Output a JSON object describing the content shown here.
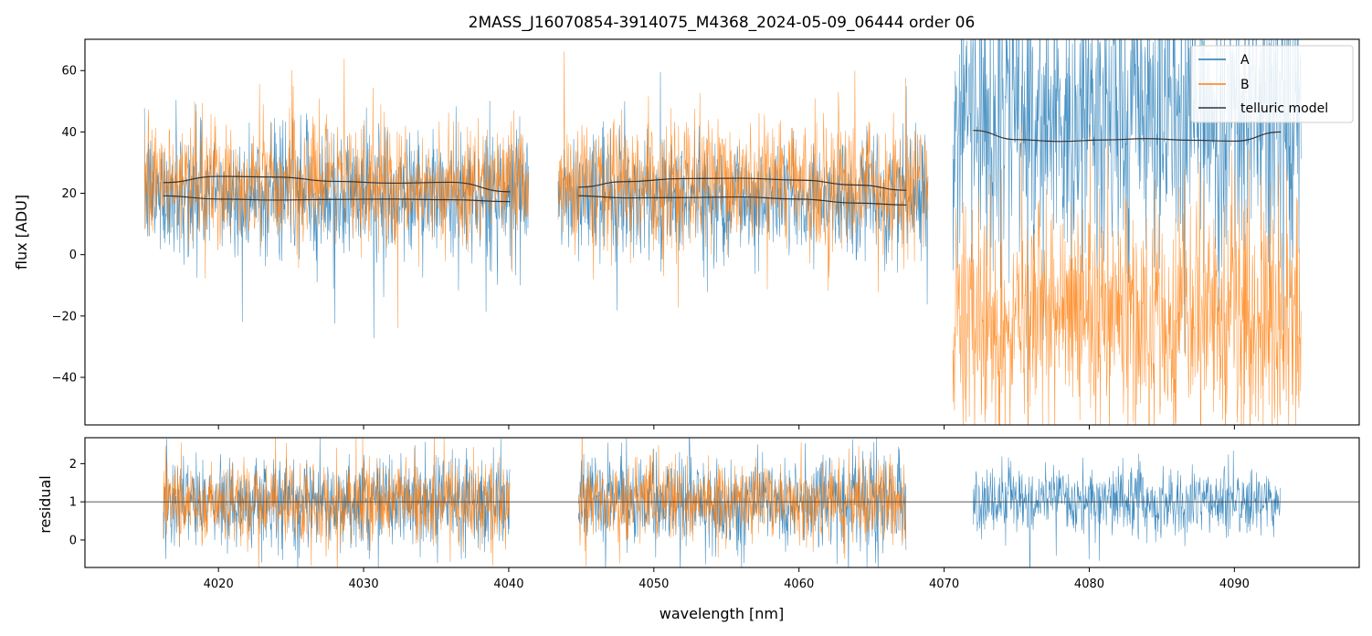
{
  "chart_data": [
    {
      "panel": "top",
      "type": "line",
      "title": "2MASS_J16070854-3914075_M4368_2024-05-09_06444  order 06",
      "xlabel": "",
      "ylabel": "flux [ADU]",
      "xlim": [
        4010.8,
        4098.6
      ],
      "ylim": [
        -55.5,
        70.2
      ],
      "x_ticks": [
        4020,
        4030,
        4040,
        4050,
        4060,
        4070,
        4080,
        4090
      ],
      "y_ticks": [
        -40,
        -20,
        0,
        20,
        40,
        60
      ],
      "y_tick_labels": [
        "−40",
        "−20",
        "0",
        "20",
        "40",
        "60"
      ],
      "x_ticklabels_visible": false,
      "legend": {
        "position": "top-right",
        "entries": [
          {
            "label": "A",
            "color": "#1f77b4"
          },
          {
            "label": "B",
            "color": "#ff7f0e"
          },
          {
            "label": "telluric model",
            "color": "#333333"
          }
        ]
      },
      "series": [
        {
          "name": "A",
          "color": "#1f77b4",
          "kind": "noisy-spectrum",
          "segments": [
            {
              "x": [
                4014.9,
                4041.4
              ],
              "mean": 20,
              "std": 10
            },
            {
              "x": [
                4043.4,
                4068.9
              ],
              "mean": 19,
              "std": 10
            },
            {
              "x": [
                4070.6,
                4094.6
              ],
              "mean": 45,
              "std": 24
            }
          ]
        },
        {
          "name": "B",
          "color": "#ff7f0e",
          "kind": "noisy-spectrum",
          "segments": [
            {
              "x": [
                4014.9,
                4041.4
              ],
              "mean": 23,
              "std": 10
            },
            {
              "x": [
                4043.4,
                4068.9
              ],
              "mean": 23,
              "std": 10
            },
            {
              "x": [
                4070.6,
                4094.6
              ],
              "mean": -22,
              "std": 19
            }
          ]
        },
        {
          "name": "telluric model",
          "color": "#333333",
          "kind": "smooth",
          "curves": [
            {
              "x": [
                4016.2,
                4020,
                4024,
                4028,
                4032,
                4036,
                4040.1
              ],
              "y": [
                23.5,
                25.5,
                25.3,
                23.9,
                23.3,
                23.6,
                20.5
              ]
            },
            {
              "x": [
                4016.2,
                4020,
                4024,
                4028,
                4032,
                4036,
                4040.1
              ],
              "y": [
                19.2,
                18.1,
                17.8,
                18.0,
                18.1,
                17.9,
                17.3
              ]
            },
            {
              "x": [
                4044.8,
                4048,
                4052,
                4056,
                4060,
                4064,
                4067.4
              ],
              "y": [
                22.0,
                23.8,
                24.8,
                24.9,
                24.3,
                22.7,
                21.0
              ]
            },
            {
              "x": [
                4044.8,
                4048,
                4052,
                4056,
                4060,
                4064,
                4067.4
              ],
              "y": [
                19.2,
                18.5,
                18.6,
                18.8,
                18.1,
                16.8,
                16.2
              ]
            },
            {
              "x": [
                4072.0,
                4075,
                4078,
                4081,
                4084,
                4087,
                4090,
                4093.2
              ],
              "y": [
                40.5,
                37.5,
                36.9,
                37.4,
                37.8,
                37.3,
                37.0,
                40.0
              ]
            }
          ]
        }
      ]
    },
    {
      "panel": "bottom",
      "type": "line",
      "xlabel": "wavelength [nm]",
      "ylabel": "residual",
      "xlim": [
        4010.8,
        4098.6
      ],
      "ylim": [
        -0.72,
        2.68
      ],
      "x_ticks": [
        4020,
        4030,
        4040,
        4050,
        4060,
        4070,
        4080,
        4090
      ],
      "y_ticks": [
        0,
        1,
        2
      ],
      "reference_line": 1,
      "series": [
        {
          "name": "A",
          "color": "#1f77b4",
          "kind": "noisy-residual",
          "segments": [
            {
              "x": [
                4016.2,
                4040.1
              ],
              "mean": 1,
              "std": 0.6
            },
            {
              "x": [
                4044.8,
                4067.4
              ],
              "mean": 1,
              "std": 0.6
            },
            {
              "x": [
                4072.0,
                4093.2
              ],
              "mean": 1,
              "std": 0.45
            }
          ]
        },
        {
          "name": "B",
          "color": "#ff7f0e",
          "kind": "noisy-residual",
          "segments": [
            {
              "x": [
                4016.2,
                4040.1
              ],
              "mean": 1,
              "std": 0.55
            },
            {
              "x": [
                4044.8,
                4067.4
              ],
              "mean": 1,
              "std": 0.5
            }
          ]
        }
      ]
    }
  ]
}
